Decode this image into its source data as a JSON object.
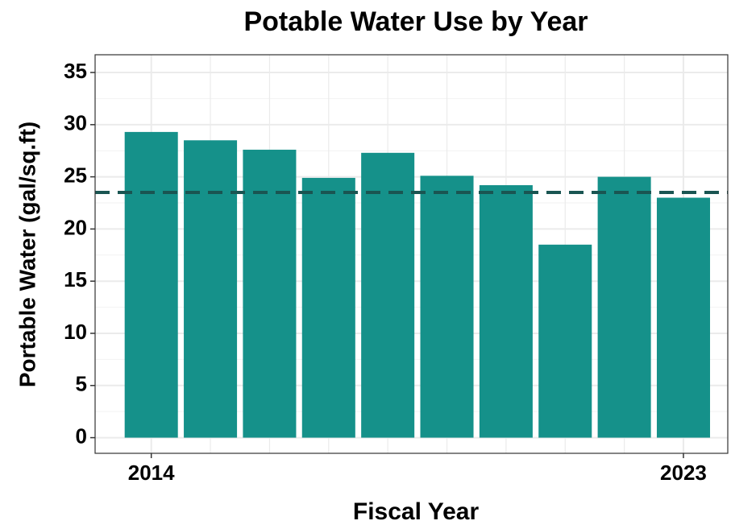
{
  "chart_data": {
    "type": "bar",
    "title": "Potable Water Use by Year",
    "x_label": "Fiscal Year",
    "y_label": "Portable Water (gal/sq.ft)",
    "x": [
      2014,
      2015,
      2016,
      2017,
      2018,
      2019,
      2020,
      2021,
      2022,
      2023
    ],
    "values": [
      29.3,
      28.5,
      27.6,
      24.9,
      27.3,
      25.1,
      24.2,
      18.5,
      25.0,
      23.0
    ],
    "color": "#15918a",
    "reference_line": {
      "value": 23.5,
      "color": "#1a5552",
      "style": "dashed"
    },
    "xlim": [
      2013.05,
      2023.75
    ],
    "xticks": [
      2014,
      2023
    ],
    "ylim": [
      -1.5,
      36.7
    ],
    "yticks": [
      0,
      5,
      10,
      15,
      20,
      25,
      30,
      35
    ],
    "grid": true
  }
}
